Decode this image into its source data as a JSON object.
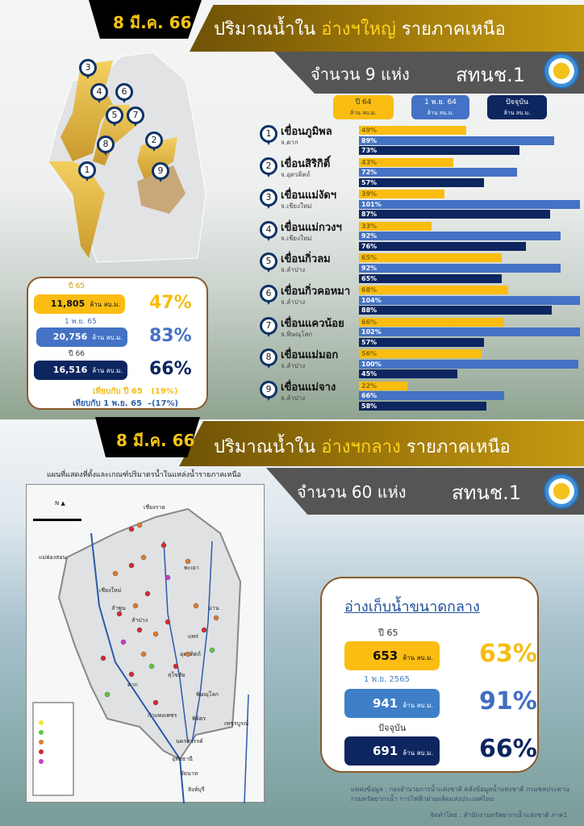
{
  "top": {
    "date": "8 มี.ค. 66",
    "title_prefix": "ปริมาณน้ำใน",
    "title_highlight": "อ่างฯใหญ่",
    "title_suffix": "รายภาคเหนือ",
    "count_label": "จำนวน 9 แห่ง",
    "org": "สทนช.1",
    "legend": [
      {
        "label": "ปี 64",
        "unit": "ล้าน ลบ.ม.",
        "color": "#fbbd11"
      },
      {
        "label": "1 พ.ย. 64",
        "unit": "ล้าน ลบ.ม.",
        "color": "#4472c4"
      },
      {
        "label": "ปัจจุบัน",
        "unit": "ล้าน ลบ.ม.",
        "color": "#0d2660"
      }
    ],
    "dams": [
      {
        "no": "1",
        "name": "เขื่อนภูมิพล",
        "province": "จ.ตาก",
        "values": [
          49,
          89,
          73
        ]
      },
      {
        "no": "2",
        "name": "เขื่อนสิริกิติ์",
        "province": "จ.อุตรดิตถ์",
        "values": [
          43,
          72,
          57
        ]
      },
      {
        "no": "3",
        "name": "เขื่อนแม่งัดฯ",
        "province": "จ.เชียงใหม่",
        "values": [
          39,
          101,
          87
        ]
      },
      {
        "no": "4",
        "name": "เขื่อนแม่กวงฯ",
        "province": "จ.เชียงใหม่",
        "values": [
          33,
          92,
          76
        ]
      },
      {
        "no": "5",
        "name": "เขื่อนกิ่วลม",
        "province": "จ.ลำปาง",
        "values": [
          65,
          92,
          65
        ]
      },
      {
        "no": "6",
        "name": "เขื่อนกิ่วคอหมา",
        "province": "จ.ลำปาง",
        "values": [
          68,
          104,
          88
        ]
      },
      {
        "no": "7",
        "name": "เขื่อนแควน้อย",
        "province": "จ.พิษณุโลก",
        "values": [
          66,
          102,
          57
        ]
      },
      {
        "no": "8",
        "name": "เขื่อนแม่มอก",
        "province": "จ.ลำปาง",
        "values": [
          56,
          100,
          45
        ]
      },
      {
        "no": "9",
        "name": "เขื่อนแม่จาง",
        "province": "จ.ลำปาง",
        "values": [
          22,
          66,
          58
        ]
      }
    ],
    "summary": {
      "rows": [
        {
          "label": "ปี 65",
          "value": "11,805",
          "unit": "ล้าน ลบ.ม.",
          "percent": "47%",
          "color": "#fbbd11"
        },
        {
          "label": "1 พ.ย. 65",
          "value": "20,756",
          "unit": "ล้าน ลบ.ม.",
          "percent": "83%",
          "color": "#4472c4"
        },
        {
          "label": "ปี 66",
          "value": "16,516",
          "unit": "ล้าน ลบ.ม.",
          "percent": "66%",
          "color": "#0d2660"
        }
      ],
      "compare_1_label": "เทียบกับ ปี 65",
      "compare_1_value": "(19%)",
      "compare_2_label": "เทียบกับ 1 พ.ย. 65",
      "compare_2_value": "–(17%)"
    }
  },
  "bottom": {
    "date": "8 มี.ค. 66",
    "title_prefix": "ปริมาณน้ำใน",
    "title_highlight": "อ่างฯกลาง",
    "title_suffix": "รายภาคเหนือ",
    "count_label": "จำนวน 60 แห่ง",
    "org": "สทนช.1",
    "map_title": "แผนที่แสดงที่ตั้งและเกณฑ์ปริมาตรน้ำในแหล่งน้ำรายภาคเหนือ",
    "map_cities": [
      "เชียงราย",
      "แม่ฮ่องสอน",
      "พะเยา",
      "เชียงใหม่",
      "ลำพูน",
      "ลำปาง",
      "น่าน",
      "แพร่",
      "อุตรดิตถ์",
      "สุโขทัย",
      "ตาก",
      "พิษณุโลก",
      "กำแพงเพชร",
      "พิจิตร",
      "เพชรบูรณ์",
      "นครสวรรค์",
      "อุทัยธานี",
      "ชัยนาท",
      "สิงห์บุรี"
    ],
    "box_title": "อ่างเก็บน้ำขนาดกลาง",
    "rows": [
      {
        "label": "ปี 65",
        "value": "653",
        "unit": "ล้าน ลบ.ม.",
        "percent": "63%",
        "color": "#fbbd11"
      },
      {
        "label": "1 พ.ย. 2565",
        "value": "941",
        "unit": "ล้าน ลบ.ม.",
        "percent": "91%",
        "color": "#3f7fc8"
      },
      {
        "label": "ปัจจุบัน",
        "value": "691",
        "unit": "ล้าน ลบ.ม.",
        "percent": "66%",
        "color": "#0d2660"
      }
    ],
    "source_line1": "แหล่งข้อมูล : กองอำนวยการน้ำแห่งชาติ คลังข้อมูลน้ำแห่งชาติ  กรมชลประทาน",
    "source_line2": "กรมทรัพยากรน้ำ การไฟฟ้าฝ่ายผลิตแห่งประเทศไทย",
    "credit": "จัดทำโดย : สำนักงานทรัพยากรน้ำแห่งชาติ ภาค1"
  }
}
